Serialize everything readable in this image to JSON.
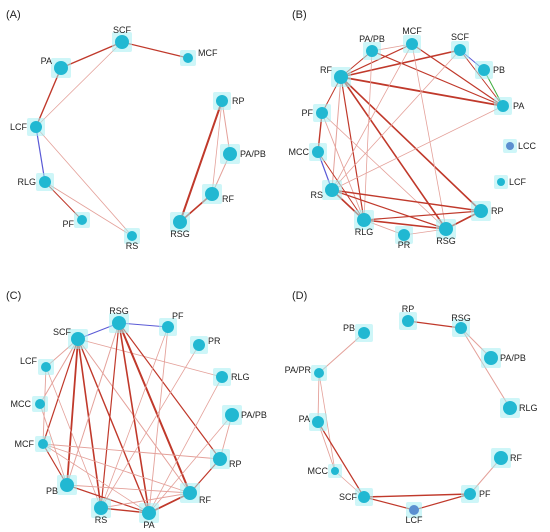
{
  "colors": {
    "node_fill": "#21b8d2",
    "node_glow": "#a6eef3",
    "node_muted": "#5b8fd0",
    "edge_red": "#c0392b",
    "edge_pink": "#e4a19a",
    "edge_blue": "#5a5ad6",
    "edge_green": "#3fae3f",
    "label": "#222222"
  },
  "panels": [
    {
      "label": "(A)",
      "nodes": [
        {
          "id": "SCF",
          "label": "SCF"
        },
        {
          "id": "MCF",
          "label": "MCF"
        },
        {
          "id": "PA",
          "label": "PA"
        },
        {
          "id": "LCF",
          "label": "LCF"
        },
        {
          "id": "RLG",
          "label": "RLG"
        },
        {
          "id": "PF",
          "label": "PF"
        },
        {
          "id": "RS",
          "label": "RS"
        },
        {
          "id": "RP",
          "label": "RP"
        },
        {
          "id": "PA/PB",
          "label": "PA/PB"
        },
        {
          "id": "RF",
          "label": "RF"
        },
        {
          "id": "RSG",
          "label": "RSG"
        }
      ],
      "edges": [
        [
          "SCF",
          "MCF",
          "red",
          1.2
        ],
        [
          "SCF",
          "PA",
          "red",
          1.4
        ],
        [
          "SCF",
          "LCF",
          "pink",
          0.8
        ],
        [
          "PA",
          "LCF",
          "red",
          1.4
        ],
        [
          "LCF",
          "RLG",
          "blue",
          1.2
        ],
        [
          "LCF",
          "RS",
          "pink",
          0.8
        ],
        [
          "RLG",
          "PF",
          "red",
          1.0
        ],
        [
          "RLG",
          "RS",
          "pink",
          0.9
        ],
        [
          "RP",
          "RSG",
          "red",
          2.0
        ],
        [
          "RP",
          "PA/PB",
          "pink",
          1.0
        ],
        [
          "PA/PB",
          "RF",
          "pink",
          1.0
        ],
        [
          "RF",
          "RSG",
          "red",
          1.6
        ],
        [
          "RP",
          "RF",
          "pink",
          0.8
        ]
      ]
    },
    {
      "label": "(B)",
      "nodes": [
        {
          "id": "PA/PB",
          "label": "PA/PB"
        },
        {
          "id": "MCF",
          "label": "MCF"
        },
        {
          "id": "SCF",
          "label": "SCF"
        },
        {
          "id": "RF",
          "label": "RF"
        },
        {
          "id": "PB",
          "label": "PB"
        },
        {
          "id": "PA",
          "label": "PA"
        },
        {
          "id": "PF",
          "label": "PF"
        },
        {
          "id": "LCC",
          "label": "LCC"
        },
        {
          "id": "MCC",
          "label": "MCC"
        },
        {
          "id": "LCF",
          "label": "LCF"
        },
        {
          "id": "RS",
          "label": "RS"
        },
        {
          "id": "RP",
          "label": "RP"
        },
        {
          "id": "RLG",
          "label": "RLG"
        },
        {
          "id": "RSG",
          "label": "RSG"
        },
        {
          "id": "PR",
          "label": "PR"
        }
      ],
      "edges": [
        [
          "RF",
          "PA",
          "red",
          1.8
        ],
        [
          "RF",
          "SCF",
          "red",
          1.6
        ],
        [
          "RF",
          "MCF",
          "red",
          1.2
        ],
        [
          "RF",
          "PA/PB",
          "red",
          1.0
        ],
        [
          "RF",
          "RP",
          "red",
          1.6
        ],
        [
          "RF",
          "RSG",
          "red",
          1.6
        ],
        [
          "RF",
          "RLG",
          "red",
          1.2
        ],
        [
          "RF",
          "RS",
          "pink",
          1.0
        ],
        [
          "RF",
          "PF",
          "red",
          1.0
        ],
        [
          "PA/PB",
          "PA",
          "red",
          1.2
        ],
        [
          "PA/PB",
          "RLG",
          "pink",
          0.8
        ],
        [
          "PA/PB",
          "MCF",
          "pink",
          0.8
        ],
        [
          "MCF",
          "PA",
          "red",
          1.2
        ],
        [
          "MCF",
          "RSG",
          "pink",
          0.8
        ],
        [
          "MCF",
          "RS",
          "pink",
          0.8
        ],
        [
          "SCF",
          "PA",
          "red",
          1.0
        ],
        [
          "SCF",
          "PB",
          "blue",
          1.0
        ],
        [
          "SCF",
          "RS",
          "pink",
          0.8
        ],
        [
          "PB",
          "PA",
          "green",
          1.0
        ],
        [
          "PF",
          "MCC",
          "red",
          1.4
        ],
        [
          "PF",
          "RLG",
          "pink",
          0.9
        ],
        [
          "PF",
          "RSG",
          "pink",
          0.8
        ],
        [
          "MCC",
          "RS",
          "blue",
          1.2
        ],
        [
          "MCC",
          "RLG",
          "red",
          1.0
        ],
        [
          "RS",
          "RLG",
          "red",
          1.6
        ],
        [
          "RS",
          "RP",
          "red",
          1.4
        ],
        [
          "RS",
          "RSG",
          "red",
          1.2
        ],
        [
          "RLG",
          "RP",
          "red",
          1.2
        ],
        [
          "RLG",
          "RSG",
          "red",
          1.6
        ],
        [
          "RLG",
          "PR",
          "pink",
          0.9
        ],
        [
          "RSG",
          "RP",
          "red",
          1.6
        ],
        [
          "PR",
          "RSG",
          "pink",
          0.8
        ],
        [
          "RS",
          "PA",
          "pink",
          0.8
        ]
      ]
    },
    {
      "label": "(C)",
      "nodes": [
        {
          "id": "RSG",
          "label": "RSG"
        },
        {
          "id": "PF",
          "label": "PF"
        },
        {
          "id": "SCF",
          "label": "SCF"
        },
        {
          "id": "PR",
          "label": "PR"
        },
        {
          "id": "LCF",
          "label": "LCF"
        },
        {
          "id": "RLG",
          "label": "RLG"
        },
        {
          "id": "MCC",
          "label": "MCC"
        },
        {
          "id": "PA/PB",
          "label": "PA/PB"
        },
        {
          "id": "MCF",
          "label": "MCF"
        },
        {
          "id": "RP",
          "label": "RP"
        },
        {
          "id": "PB",
          "label": "PB"
        },
        {
          "id": "RF",
          "label": "RF"
        },
        {
          "id": "RS",
          "label": "RS"
        },
        {
          "id": "PA",
          "label": "PA"
        }
      ],
      "edges": [
        [
          "SCF",
          "RSG",
          "blue",
          1.0
        ],
        [
          "RSG",
          "PF",
          "blue",
          1.0
        ],
        [
          "SCF",
          "PB",
          "red",
          1.8
        ],
        [
          "SCF",
          "RS",
          "red",
          1.6
        ],
        [
          "SCF",
          "PA",
          "red",
          1.4
        ],
        [
          "SCF",
          "MCC",
          "pink",
          1.0
        ],
        [
          "SCF",
          "MCF",
          "red",
          1.2
        ],
        [
          "SCF",
          "LCF",
          "pink",
          0.9
        ],
        [
          "SCF",
          "RF",
          "pink",
          1.0
        ],
        [
          "SCF",
          "RLG",
          "pink",
          0.8
        ],
        [
          "RSG",
          "RF",
          "red",
          2.0
        ],
        [
          "RSG",
          "PA",
          "red",
          1.6
        ],
        [
          "RSG",
          "RP",
          "red",
          1.2
        ],
        [
          "RSG",
          "RS",
          "red",
          1.2
        ],
        [
          "RSG",
          "PB",
          "pink",
          1.0
        ],
        [
          "PF",
          "PA",
          "pink",
          0.9
        ],
        [
          "PF",
          "RS",
          "pink",
          0.8
        ],
        [
          "PR",
          "RS",
          "pink",
          0.8
        ],
        [
          "LCF",
          "MCF",
          "pink",
          0.9
        ],
        [
          "LCF",
          "RS",
          "pink",
          0.8
        ],
        [
          "MCC",
          "PB",
          "pink",
          0.9
        ],
        [
          "MCF",
          "PB",
          "red",
          1.2
        ],
        [
          "MCF",
          "RF",
          "pink",
          0.9
        ],
        [
          "MCF",
          "RP",
          "pink",
          0.9
        ],
        [
          "PB",
          "PA",
          "red",
          1.2
        ],
        [
          "PB",
          "RF",
          "pink",
          0.9
        ],
        [
          "RS",
          "PA",
          "red",
          1.4
        ],
        [
          "PA",
          "RF",
          "red",
          1.8
        ],
        [
          "RF",
          "RP",
          "red",
          1.2
        ],
        [
          "RP",
          "PA/PB",
          "pink",
          0.9
        ],
        [
          "PA/PB",
          "PA",
          "pink",
          0.8
        ],
        [
          "RLG",
          "PA",
          "pink",
          0.8
        ],
        [
          "RS",
          "RF",
          "pink",
          0.9
        ],
        [
          "MCF",
          "PA",
          "pink",
          0.8
        ]
      ]
    },
    {
      "label": "(D)",
      "nodes": [
        {
          "id": "RP",
          "label": "RP"
        },
        {
          "id": "PB",
          "label": "PB"
        },
        {
          "id": "RSG",
          "label": "RSG"
        },
        {
          "id": "PA/PR",
          "label": "PA/PR"
        },
        {
          "id": "PA/PB",
          "label": "PA/PB"
        },
        {
          "id": "PA",
          "label": "PA"
        },
        {
          "id": "RLG",
          "label": "RLG"
        },
        {
          "id": "RF",
          "label": "RF"
        },
        {
          "id": "MCC",
          "label": "MCC"
        },
        {
          "id": "SCF",
          "label": "SCF"
        },
        {
          "id": "PF",
          "label": "PF"
        },
        {
          "id": "LCF",
          "label": "LCF"
        }
      ],
      "edges": [
        [
          "RP",
          "RSG",
          "red",
          1.2
        ],
        [
          "RSG",
          "PA/PB",
          "pink",
          1.0
        ],
        [
          "RSG",
          "RLG",
          "pink",
          1.0
        ],
        [
          "PB",
          "PA/PR",
          "pink",
          1.0
        ],
        [
          "PA/PR",
          "PA",
          "pink",
          0.9
        ],
        [
          "PA/PR",
          "MCC",
          "pink",
          0.8
        ],
        [
          "PA",
          "MCC",
          "pink",
          0.9
        ],
        [
          "PA",
          "SCF",
          "red",
          1.2
        ],
        [
          "MCC",
          "SCF",
          "pink",
          0.8
        ],
        [
          "SCF",
          "LCF",
          "red",
          1.2
        ],
        [
          "SCF",
          "PF",
          "red",
          1.4
        ],
        [
          "LCF",
          "PF",
          "red",
          1.2
        ],
        [
          "PF",
          "RF",
          "pink",
          1.0
        ]
      ]
    }
  ]
}
